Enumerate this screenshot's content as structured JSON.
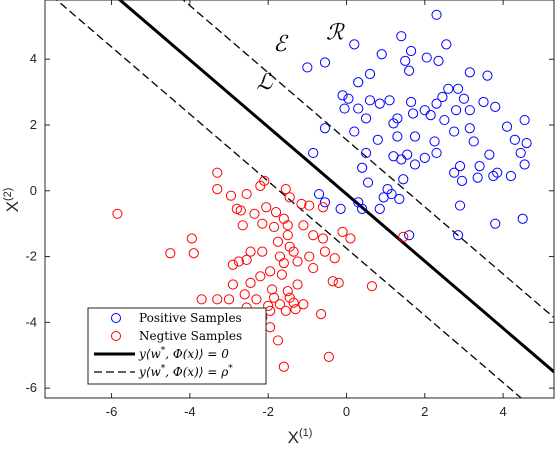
{
  "chart_data": {
    "type": "scatter",
    "xlim": [
      -7.7,
      5.3
    ],
    "ylim": [
      -6.3,
      5.8
    ],
    "xticks": [
      -6,
      -4,
      -2,
      0,
      2,
      4
    ],
    "yticks": [
      -6,
      -4,
      -2,
      0,
      2,
      4
    ],
    "xlabel": "X",
    "xlabel_sup": "(1)",
    "ylabel": "X",
    "ylabel_sup": "(2)",
    "grid": false,
    "legend_position": "bottom-left",
    "region_labels": [
      {
        "name": "script-E",
        "text": "ℰ",
        "x": -1.7,
        "y": 4.25
      },
      {
        "name": "script-R",
        "text": "ℛ",
        "x": -0.3,
        "y": 4.6
      },
      {
        "name": "script-L",
        "text": "ℒ",
        "x": -2.1,
        "y": 3.1
      }
    ],
    "series": [
      {
        "name": "Positive Samples",
        "color": "#0000ff",
        "marker": "circle",
        "points": [
          [
            2.3,
            5.35
          ],
          [
            1.4,
            4.7
          ],
          [
            0.2,
            4.45
          ],
          [
            0.9,
            4.15
          ],
          [
            1.65,
            4.25
          ],
          [
            2.05,
            4.05
          ],
          [
            2.35,
            3.95
          ],
          [
            2.55,
            4.45
          ],
          [
            -1.0,
            3.75
          ],
          [
            -0.55,
            3.9
          ],
          [
            1.5,
            3.95
          ],
          [
            1.6,
            3.65
          ],
          [
            0.6,
            3.55
          ],
          [
            0.3,
            3.3
          ],
          [
            3.6,
            3.5
          ],
          [
            3.15,
            3.6
          ],
          [
            2.6,
            3.1
          ],
          [
            2.85,
            3.1
          ],
          [
            1.1,
            2.75
          ],
          [
            -0.1,
            2.9
          ],
          [
            0.05,
            2.8
          ],
          [
            0.6,
            2.75
          ],
          [
            0.85,
            2.65
          ],
          [
            1.65,
            2.7
          ],
          [
            2.0,
            2.45
          ],
          [
            2.3,
            2.65
          ],
          [
            2.45,
            2.85
          ],
          [
            3.0,
            2.8
          ],
          [
            3.5,
            2.7
          ],
          [
            0.3,
            2.5
          ],
          [
            1.7,
            2.35
          ],
          [
            -0.05,
            2.5
          ],
          [
            0.5,
            2.2
          ],
          [
            1.3,
            2.2
          ],
          [
            2.15,
            2.3
          ],
          [
            2.8,
            2.45
          ],
          [
            3.15,
            2.45
          ],
          [
            3.8,
            2.55
          ],
          [
            1.2,
            2.05
          ],
          [
            2.5,
            2.15
          ],
          [
            2.75,
            1.8
          ],
          [
            3.15,
            1.9
          ],
          [
            -0.55,
            1.9
          ],
          [
            0.2,
            1.8
          ],
          [
            0.8,
            1.55
          ],
          [
            1.3,
            1.65
          ],
          [
            1.75,
            1.65
          ],
          [
            2.25,
            1.5
          ],
          [
            3.25,
            1.5
          ],
          [
            4.1,
            1.95
          ],
          [
            4.55,
            2.15
          ],
          [
            4.3,
            1.55
          ],
          [
            4.6,
            1.45
          ],
          [
            4.45,
            1.15
          ],
          [
            -0.85,
            1.15
          ],
          [
            0.5,
            1.15
          ],
          [
            1.2,
            1.05
          ],
          [
            1.55,
            1.1
          ],
          [
            2.0,
            1.0
          ],
          [
            2.3,
            1.15
          ],
          [
            3.65,
            1.1
          ],
          [
            0.4,
            0.7
          ],
          [
            1.4,
            0.95
          ],
          [
            1.75,
            0.8
          ],
          [
            2.9,
            0.75
          ],
          [
            2.75,
            0.55
          ],
          [
            3.4,
            0.75
          ],
          [
            3.85,
            0.55
          ],
          [
            2.95,
            0.3
          ],
          [
            1.45,
            0.35
          ],
          [
            0.55,
            0.25
          ],
          [
            1.05,
            0.05
          ],
          [
            3.35,
            0.4
          ],
          [
            3.75,
            0.45
          ],
          [
            4.2,
            0.45
          ],
          [
            4.55,
            0.8
          ],
          [
            1.35,
            -0.25
          ],
          [
            1.15,
            -0.1
          ],
          [
            0.95,
            -0.2
          ],
          [
            -0.7,
            -0.1
          ],
          [
            -0.55,
            -0.35
          ],
          [
            0.3,
            -0.35
          ],
          [
            0.85,
            -0.55
          ],
          [
            0.4,
            -0.55
          ],
          [
            2.9,
            -0.45
          ],
          [
            -0.15,
            -0.55
          ],
          [
            4.5,
            -0.85
          ],
          [
            3.8,
            -1.0
          ],
          [
            2.85,
            -1.35
          ],
          [
            1.6,
            -1.35
          ]
        ]
      },
      {
        "name": "Negtive Samples",
        "color": "#ff0000",
        "marker": "circle",
        "points": [
          [
            -5.85,
            -0.7
          ],
          [
            -3.3,
            0.55
          ],
          [
            -3.3,
            0.05
          ],
          [
            -2.95,
            -0.15
          ],
          [
            -2.1,
            0.3
          ],
          [
            -2.2,
            0.15
          ],
          [
            -2.55,
            -0.1
          ],
          [
            -1.55,
            0.05
          ],
          [
            -1.45,
            -0.2
          ],
          [
            -1.15,
            -0.4
          ],
          [
            -0.95,
            -0.45
          ],
          [
            -0.6,
            -0.5
          ],
          [
            -2.8,
            -0.55
          ],
          [
            -2.7,
            -0.6
          ],
          [
            -2.35,
            -0.7
          ],
          [
            -2.05,
            -0.5
          ],
          [
            -1.8,
            -0.65
          ],
          [
            -1.6,
            -0.85
          ],
          [
            -2.65,
            -1.05
          ],
          [
            -2.15,
            -1.0
          ],
          [
            -1.85,
            -1.1
          ],
          [
            -1.5,
            -1.05
          ],
          [
            -1.1,
            -1.05
          ],
          [
            -0.85,
            -1.35
          ],
          [
            -0.6,
            -1.45
          ],
          [
            -0.1,
            -1.25
          ],
          [
            0.1,
            -1.45
          ],
          [
            -1.5,
            -1.35
          ],
          [
            -1.75,
            -1.55
          ],
          [
            -1.45,
            -1.7
          ],
          [
            -1.35,
            -1.85
          ],
          [
            -1.7,
            -2.0
          ],
          [
            -2.15,
            -1.85
          ],
          [
            -2.45,
            -1.85
          ],
          [
            -2.55,
            -2.1
          ],
          [
            -2.75,
            -2.15
          ],
          [
            -2.9,
            -2.25
          ],
          [
            -1.25,
            -2.15
          ],
          [
            -0.55,
            -1.85
          ],
          [
            -0.3,
            -2.05
          ],
          [
            -0.85,
            -2.35
          ],
          [
            -4.5,
            -1.9
          ],
          [
            -3.95,
            -1.45
          ],
          [
            -3.9,
            -1.9
          ],
          [
            -1.95,
            -2.45
          ],
          [
            -2.2,
            -2.6
          ],
          [
            -1.65,
            -2.55
          ],
          [
            -2.45,
            -2.8
          ],
          [
            -1.9,
            -3.0
          ],
          [
            -1.5,
            -3.05
          ],
          [
            -1.25,
            -2.85
          ],
          [
            -2.9,
            -2.85
          ],
          [
            -2.6,
            -3.15
          ],
          [
            -3.3,
            -3.3
          ],
          [
            -3.0,
            -3.3
          ],
          [
            -2.3,
            -3.3
          ],
          [
            -1.85,
            -3.25
          ],
          [
            -1.7,
            -3.45
          ],
          [
            -1.35,
            -3.4
          ],
          [
            -1.45,
            -3.25
          ],
          [
            -2.0,
            -3.5
          ],
          [
            -1.95,
            -3.65
          ],
          [
            -1.1,
            -3.45
          ],
          [
            -1.3,
            -3.6
          ],
          [
            -1.55,
            -3.65
          ],
          [
            -2.15,
            -3.85
          ],
          [
            -2.55,
            -3.55
          ],
          [
            -2.85,
            -3.85
          ],
          [
            -2.5,
            -4.05
          ],
          [
            -3.7,
            -3.3
          ],
          [
            -3.0,
            -4.2
          ],
          [
            -1.6,
            -5.35
          ],
          [
            -0.45,
            -5.05
          ],
          [
            -0.2,
            -2.8
          ],
          [
            -0.35,
            -2.75
          ],
          [
            0.65,
            -2.9
          ],
          [
            1.45,
            -1.4
          ],
          [
            -2.3,
            -4.55
          ],
          [
            -1.95,
            -4.15
          ],
          [
            -1.75,
            -4.55
          ],
          [
            -2.3,
            -5.1
          ],
          [
            -0.65,
            -3.75
          ],
          [
            -4.35,
            -4.05
          ],
          [
            -1.6,
            -2.2
          ],
          [
            -0.95,
            -2.0
          ]
        ]
      }
    ],
    "lines": [
      {
        "name": "y⟨w*, Φ(x)⟩ = 0",
        "style": "solid",
        "width": 3,
        "slope": -1.02,
        "intercept": -0.1
      },
      {
        "name": "y⟨w*, Φ(x)⟩ = ρ*",
        "style": "dashed",
        "width": 1.3,
        "slope": -1.02,
        "intercept": 1.55
      },
      {
        "name": "y⟨w*, Φ(x)⟩ = ρ* (lower)",
        "style": "dashed",
        "width": 1.3,
        "slope": -1.02,
        "intercept": -1.75
      }
    ],
    "legend": [
      {
        "label": "Positive Samples",
        "kind": "marker",
        "color": "#0000ff"
      },
      {
        "label": "Negtive Samples",
        "kind": "marker",
        "color": "#ff0000"
      },
      {
        "label_parts": [
          "y",
          "⟨w",
          "*",
          ", Φ(x)⟩ = 0"
        ],
        "kind": "solid"
      },
      {
        "label_parts": [
          "y",
          "⟨w",
          "*",
          ", Φ(x)⟩ = ρ",
          "*"
        ],
        "kind": "dashed"
      }
    ]
  }
}
